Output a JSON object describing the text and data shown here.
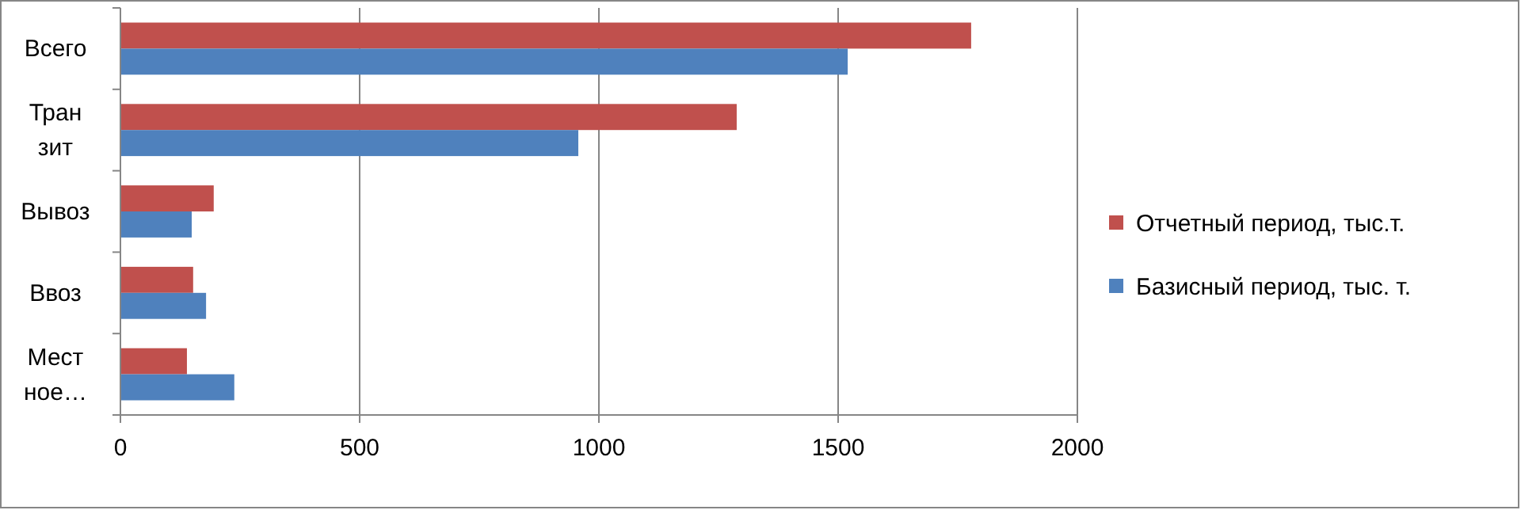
{
  "chart_data": {
    "type": "bar",
    "orientation": "horizontal",
    "categories": [
      "Всего",
      "Транзит",
      "Вывоз",
      "Ввоз",
      "Местное…"
    ],
    "series": [
      {
        "name": "Отчетный период, тыс.т.",
        "color": "#c0504d",
        "values": [
          1778,
          1288,
          195,
          152,
          139
        ]
      },
      {
        "name": "Базисный период, тыс. т.",
        "color": "#4f81bd",
        "values": [
          1520,
          957,
          149,
          179,
          238
        ]
      }
    ],
    "xlim": [
      0,
      2000
    ],
    "xticks": [
      0,
      500,
      1000,
      1500,
      2000
    ],
    "grid": "x",
    "legend": "right"
  }
}
